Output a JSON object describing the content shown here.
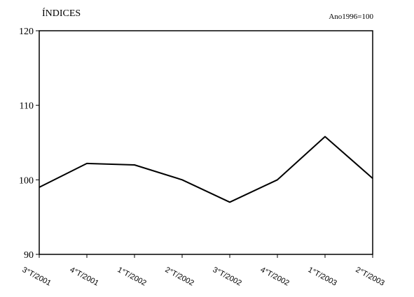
{
  "chart_data": {
    "type": "line",
    "title": "ÍNDICES",
    "subtitle": "Ano1996=100",
    "categories": [
      "3°T/2001",
      "4°T/2001",
      "1°T/2002",
      "2°T/2002",
      "3°T/2002",
      "4°T/2002",
      "1°T/2003",
      "2°T/2003"
    ],
    "series": [
      {
        "values": [
          99.0,
          102.2,
          102.0,
          100.0,
          97.0,
          100.0,
          105.8,
          100.2
        ]
      }
    ],
    "ylim": [
      90,
      120
    ],
    "yticks": [
      90,
      100,
      110,
      120
    ],
    "ytick_labels": [
      "90",
      "100",
      "110",
      "120"
    ],
    "grid": false,
    "legend": "none",
    "line_color": "#000000"
  }
}
